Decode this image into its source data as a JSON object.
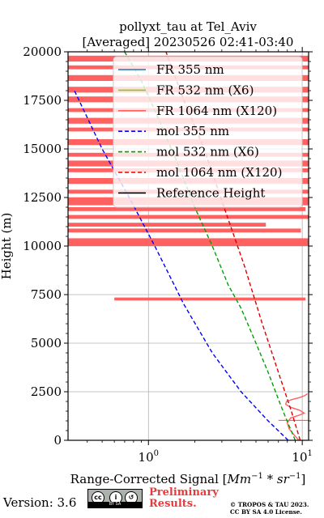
{
  "chart_data": {
    "type": "line",
    "title": [
      "pollyxt_tau at Tel_Aviv",
      "[Averaged] 20230526 02:41-03:40"
    ],
    "xlabel_prefix": "Range-Corrected Signal [",
    "xlabel_math": "Mm",
    "xlabel_exp1": "−1",
    "xlabel_mid": " * ",
    "xlabel_math2": "sr",
    "xlabel_exp2": "−1",
    "xlabel_suffix": "]",
    "ylabel": "Height (m)",
    "xscale": "log",
    "xlim": [
      0.3,
      11
    ],
    "ylim": [
      0,
      20000
    ],
    "grid": true,
    "yticks": [
      0,
      2500,
      5000,
      7500,
      10000,
      12500,
      15000,
      17500,
      20000
    ],
    "ytick_labels": [
      "0",
      "2500",
      "5000",
      "7500",
      "10000",
      "12500",
      "15000",
      "17500",
      "20000"
    ],
    "xticks": [
      1,
      10
    ],
    "xtick_labels_base": [
      "10",
      "10"
    ],
    "xtick_labels_exp": [
      "0",
      "1"
    ],
    "legend_position": "upper-right",
    "series": [
      {
        "name": "FR 355 nm",
        "color": "#1f77b4",
        "style": "solid",
        "x": [],
        "y": []
      },
      {
        "name": "FR 532 nm (X6)",
        "color": "#80d010",
        "style": "solid",
        "x": [],
        "y": []
      },
      {
        "name": "FR 1064 nm (X120)",
        "color": "#ff6060",
        "style": "solid",
        "x": [
          9.5,
          8.8,
          8.2,
          8.0,
          8.4,
          9.6,
          10.3,
          9.6,
          8.4,
          7.8,
          7.9,
          8.6,
          9.6,
          10.4,
          10.8
        ],
        "y": [
          0,
          300,
          600,
          900,
          1150,
          1300,
          1400,
          1550,
          1700,
          1850,
          2000,
          2100,
          2200,
          2300,
          2400
        ]
      },
      {
        "name": "mol 355 nm",
        "color": "#0000ff",
        "style": "dashed",
        "x": [
          8.1,
          6.0,
          4.0,
          2.6,
          1.7,
          1.1,
          0.75,
          0.5,
          0.33
        ],
        "y": [
          0,
          1000,
          2500,
          4500,
          7000,
          10000,
          12500,
          15000,
          18000
        ]
      },
      {
        "name": "mol 532 nm (X6)",
        "color": "#00a000",
        "style": "dashed",
        "x": [
          9.0,
          7.5,
          6.0,
          5.0,
          4.0,
          3.3,
          2.6,
          2.0,
          1.5,
          1.1,
          0.9,
          0.7
        ],
        "y": [
          0,
          1500,
          3500,
          5000,
          6800,
          8000,
          10000,
          12000,
          14500,
          17000,
          18500,
          20000
        ]
      },
      {
        "name": "mol 1064 nm (X120)",
        "color": "#dd0000",
        "style": "dashed",
        "x": [
          9.7,
          8.5,
          7.0,
          5.5,
          4.2,
          3.1,
          2.3,
          1.7,
          1.3
        ],
        "y": [
          0,
          1500,
          3500,
          6000,
          9000,
          12000,
          15000,
          17500,
          20000
        ]
      },
      {
        "name": "Reference Height",
        "color": "#000000",
        "style": "solid",
        "x": [],
        "y": []
      }
    ],
    "noise_1064": {
      "color": "#ff6060",
      "segments": [
        [
          10000,
          10400,
          0.3,
          11
        ],
        [
          10700,
          10900,
          0.3,
          9.8
        ],
        [
          11000,
          11200,
          0.3,
          5.8
        ],
        [
          11400,
          11600,
          0.3,
          11
        ],
        [
          11800,
          12000,
          0.3,
          10.5
        ],
        [
          12100,
          12500,
          0.3,
          11
        ],
        [
          12700,
          12900,
          0.3,
          11
        ],
        [
          13200,
          13500,
          0.3,
          11
        ],
        [
          13800,
          14000,
          0.3,
          11
        ],
        [
          14100,
          14400,
          0.3,
          11
        ],
        [
          14600,
          14800,
          0.3,
          11
        ],
        [
          15200,
          15500,
          0.3,
          11
        ],
        [
          15900,
          16100,
          0.3,
          11
        ],
        [
          16300,
          16600,
          0.3,
          11
        ],
        [
          16900,
          17100,
          0.3,
          11
        ],
        [
          17400,
          17700,
          0.3,
          11
        ],
        [
          17900,
          18200,
          0.3,
          11
        ],
        [
          18500,
          18800,
          0.3,
          11
        ],
        [
          19100,
          19300,
          0.3,
          11
        ],
        [
          19500,
          19800,
          0.3,
          11
        ],
        [
          7200,
          7350,
          0.6,
          10.5
        ],
        [
          1000,
          1050,
          7.0,
          11
        ]
      ]
    }
  },
  "footer": {
    "version": "Version: 3.6",
    "cc_by_sa": "BY SA",
    "cc_icon": "cc-by-sa-license-icon",
    "preliminary": [
      "Preliminary",
      "Results."
    ],
    "copyright": [
      "© TROPOS & TAU 2023.",
      "CC BY SA 4.0 License."
    ]
  }
}
